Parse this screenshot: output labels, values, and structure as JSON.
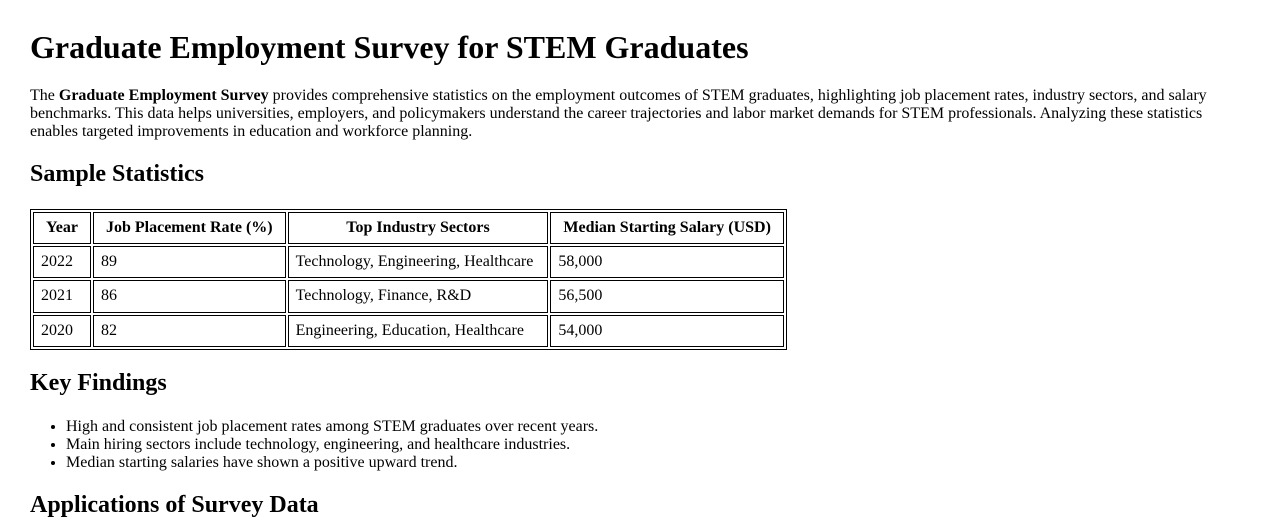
{
  "page": {
    "title": "Graduate Employment Survey for STEM Graduates",
    "intro": {
      "text_before": "The ",
      "bold_lead": "Graduate Employment Survey",
      "text_after": " provides comprehensive statistics on the employment outcomes of STEM graduates, highlighting job placement rates, industry sectors, and salary benchmarks. This data helps universities, employers, and policymakers understand the career trajectories and labor market demands for STEM professionals. Analyzing these statistics enables targeted improvements in education and workforce planning."
    }
  },
  "sample_statistics": {
    "heading": "Sample Statistics"
  },
  "table": {
    "headers": [
      "Year",
      "Job Placement Rate (%)",
      "Top Industry Sectors",
      "Median Starting Salary (USD)"
    ],
    "rows": [
      [
        "2022",
        "89",
        "Technology, Engineering, Healthcare",
        "58,000"
      ],
      [
        "2021",
        "86",
        "Technology, Finance, R&D",
        "56,500"
      ],
      [
        "2020",
        "82",
        "Engineering, Education, Healthcare",
        "54,000"
      ]
    ]
  },
  "key_findings": {
    "heading": "Key Findings",
    "items": [
      "High and consistent job placement rates among STEM graduates over recent years.",
      "Main hiring sectors include technology, engineering, and healthcare industries.",
      "Median starting salaries have shown a positive upward trend."
    ]
  },
  "applications": {
    "heading": "Applications of Survey Data"
  }
}
